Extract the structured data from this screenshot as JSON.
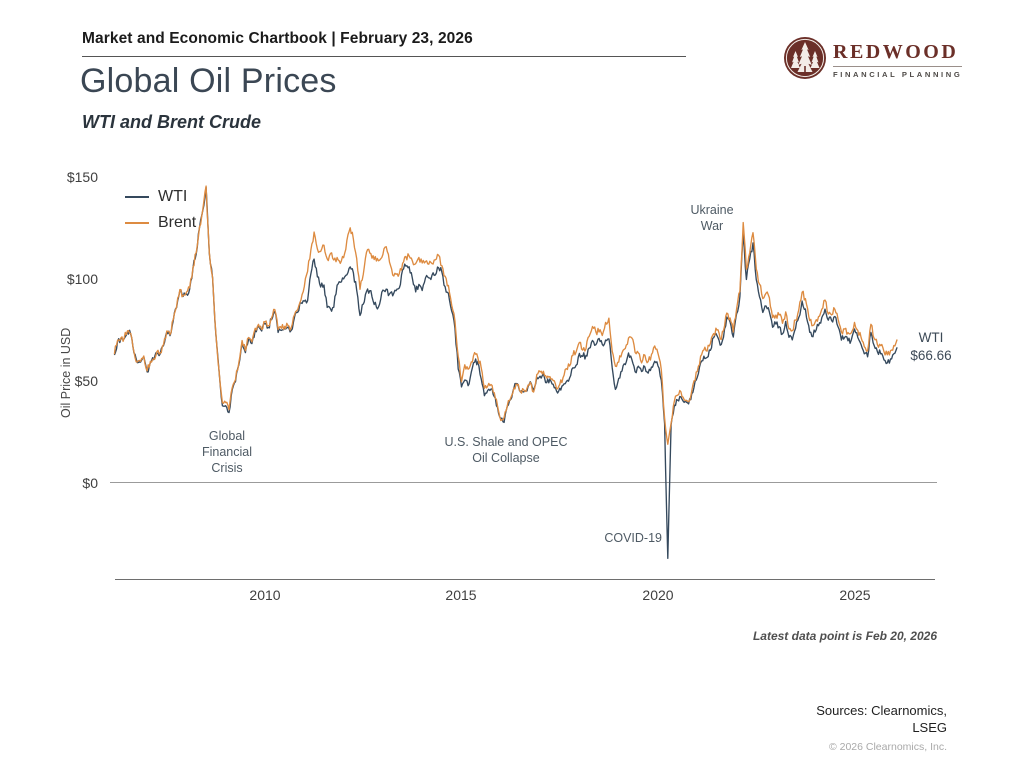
{
  "header": {
    "title": "Market and Economic Chartbook | February 23, 2026"
  },
  "logo": {
    "name": "REDWOOD",
    "tagline": "FINANCIAL PLANNING",
    "brand_color": "#6b2f28"
  },
  "page": {
    "title": "Global Oil Prices",
    "subtitle": "WTI and Brent Crude"
  },
  "chart_data": {
    "type": "line",
    "title": "Global Oil Prices",
    "subtitle": "WTI and Brent Crude",
    "ylabel": "Oil Price in USD",
    "y_ticks": [
      "$150",
      "$100",
      "$50",
      "$0"
    ],
    "y_tick_values": [
      150,
      100,
      50,
      0
    ],
    "x_ticks": [
      "2010",
      "2015",
      "2020",
      "2025"
    ],
    "ylim": [
      -45,
      155
    ],
    "x_range": [
      2006.17,
      2026.4
    ],
    "grid": "zero-line-only",
    "legend_position": "top-left",
    "x_start_year": 2006.1667,
    "x_interval_years": 0.0833333,
    "visual_noise_amp": 1.6,
    "series": [
      {
        "name": "WTI",
        "color": "#35495d",
        "values": [
          62.9,
          69.7,
          70.9,
          70.9,
          74.4,
          73.1,
          63.9,
          59.1,
          59.4,
          62.0,
          54.6,
          59.3,
          60.6,
          64.0,
          63.5,
          67.5,
          74.2,
          72.4,
          79.9,
          86.2,
          94.6,
          91.7,
          93.0,
          95.4,
          105.6,
          112.6,
          125.4,
          133.9,
          145.3,
          113.0,
          100.6,
          72.8,
          54.0,
          38.0,
          38.0,
          34.6,
          46.0,
          49.8,
          58.0,
          69.2,
          64.1,
          70.5,
          68.5,
          75.2,
          77.0,
          74.7,
          78.2,
          76.4,
          80.3,
          84.3,
          74.0,
          75.0,
          76.0,
          76.6,
          75.0,
          81.5,
          84.0,
          88.5,
          89.4,
          89.6,
          102.9,
          110.0,
          101.3,
          96.3,
          97.3,
          86.3,
          85.6,
          86.4,
          97.2,
          98.6,
          100.3,
          102.3,
          106.2,
          103.3,
          94.7,
          82.3,
          87.9,
          94.1,
          94.5,
          89.5,
          86.5,
          87.9,
          94.8,
          95.3,
          92.9,
          92.0,
          94.5,
          95.8,
          104.7,
          106.6,
          106.3,
          100.5,
          93.9,
          97.6,
          94.6,
          100.8,
          100.8,
          102.1,
          102.2,
          105.8,
          103.6,
          96.5,
          93.2,
          84.4,
          75.8,
          56.0,
          47.2,
          50.6,
          47.8,
          54.5,
          59.3,
          59.8,
          51.2,
          42.9,
          45.5,
          46.2,
          42.4,
          37.2,
          31.7,
          29.8,
          37.8,
          41.0,
          46.7,
          48.8,
          44.7,
          44.7,
          45.2,
          49.8,
          45.7,
          52.0,
          52.5,
          53.5,
          49.3,
          51.1,
          48.5,
          45.2,
          46.6,
          48.0,
          49.8,
          51.6,
          56.6,
          57.9,
          63.7,
          62.2,
          62.7,
          66.3,
          70.0,
          67.9,
          71.0,
          68.1,
          70.2,
          70.8,
          56.7,
          46.0,
          51.4,
          55.0,
          58.2,
          63.9,
          60.8,
          54.7,
          57.4,
          54.8,
          57.0,
          54.0,
          57.0,
          59.8,
          57.5,
          50.5,
          29.2,
          -37.0,
          28.6,
          38.3,
          40.7,
          42.3,
          39.6,
          39.4,
          41.0,
          47.0,
          52.0,
          59.0,
          62.3,
          61.7,
          65.2,
          71.4,
          72.4,
          67.7,
          71.6,
          81.5,
          79.1,
          71.7,
          83.2,
          91.6,
          123.0,
          100.0,
          110.0,
          118.0,
          99.8,
          91.5,
          83.8,
          87.0,
          84.0,
          76.5,
          78.1,
          76.8,
          73.3,
          79.4,
          71.6,
          70.3,
          76.0,
          81.4,
          89.4,
          85.5,
          77.4,
          72.0,
          74.2,
          77.3,
          81.3,
          85.4,
          80.0,
          79.8,
          81.8,
          76.7,
          70.2,
          71.6,
          69.9,
          70.1,
          75.7,
          71.5,
          68.0,
          63.5,
          62.0,
          74.0,
          67.5,
          64.5,
          63.5,
          60.5,
          59.0,
          61.0,
          63.5,
          66.66
        ]
      },
      {
        "name": "Brent",
        "color": "#dd8b41",
        "values": [
          63.3,
          70.1,
          71.3,
          71.3,
          74.8,
          73.5,
          64.3,
          59.5,
          59.8,
          62.4,
          55.1,
          59.8,
          61.1,
          64.5,
          64.0,
          68.0,
          74.7,
          72.9,
          80.4,
          86.7,
          95.1,
          92.2,
          93.7,
          95.9,
          106.1,
          113.1,
          125.9,
          134.4,
          145.9,
          113.5,
          101.1,
          73.3,
          54.5,
          39.5,
          39.5,
          36.0,
          47.0,
          50.8,
          59.0,
          70.0,
          65.0,
          71.5,
          69.4,
          76.0,
          78.0,
          75.5,
          79.2,
          77.3,
          81.2,
          85.2,
          75.5,
          76.0,
          77.0,
          77.5,
          76.3,
          82.7,
          85.3,
          90.0,
          96.5,
          104.0,
          114.6,
          123.3,
          115.0,
          113.8,
          116.8,
          110.1,
          112.8,
          109.6,
          110.8,
          107.9,
          110.7,
          119.3,
          125.4,
          119.8,
          110.3,
          95.2,
          102.6,
          113.4,
          113.0,
          111.7,
          109.1,
          109.5,
          112.3,
          116.1,
          108.5,
          102.2,
          102.6,
          102.9,
          107.9,
          111.3,
          111.6,
          109.1,
          107.8,
          110.8,
          108.1,
          108.8,
          107.5,
          107.8,
          109.7,
          111.9,
          106.8,
          101.6,
          97.1,
          87.4,
          79.4,
          62.3,
          49.8,
          58.1,
          55.9,
          59.5,
          64.1,
          61.5,
          56.6,
          46.5,
          47.6,
          48.4,
          44.3,
          38.0,
          30.7,
          32.2,
          38.2,
          41.6,
          46.7,
          48.3,
          44.9,
          45.8,
          46.6,
          49.5,
          44.7,
          53.3,
          54.6,
          54.9,
          51.6,
          52.3,
          50.3,
          46.4,
          48.5,
          51.7,
          56.2,
          57.5,
          62.7,
          64.4,
          69.1,
          65.3,
          66.0,
          72.1,
          76.9,
          74.4,
          74.2,
          72.5,
          78.9,
          81.0,
          64.7,
          57.4,
          59.4,
          64.0,
          66.1,
          71.2,
          71.3,
          64.2,
          63.9,
          59.0,
          62.8,
          59.7,
          63.2,
          67.3,
          63.7,
          55.7,
          32.0,
          19.0,
          29.4,
          40.3,
          43.2,
          44.8,
          40.9,
          40.2,
          42.7,
          50.2,
          54.8,
          62.3,
          65.4,
          64.8,
          68.5,
          73.4,
          75.2,
          70.8,
          74.9,
          83.5,
          81.1,
          74.2,
          85.6,
          94.1,
          128.0,
          105.0,
          113.0,
          123.0,
          105.1,
          97.7,
          90.6,
          93.3,
          91.0,
          81.3,
          82.5,
          82.6,
          78.5,
          84.1,
          75.7,
          74.9,
          80.1,
          85.1,
          93.7,
          90.6,
          82.0,
          77.3,
          79.1,
          81.7,
          85.4,
          89.9,
          83.0,
          82.6,
          85.3,
          80.4,
          74.3,
          75.7,
          73.9,
          73.7,
          78.9,
          75.0,
          71.5,
          67.0,
          65.0,
          78.0,
          71.0,
          68.0,
          67.5,
          64.5,
          63.0,
          65.0,
          67.5,
          70.5
        ]
      }
    ],
    "annotations": {
      "gfc": [
        "Global",
        "Financial",
        "Crisis"
      ],
      "shale": [
        "U.S. Shale and OPEC",
        "Oil Collapse"
      ],
      "covid": "COVID-19",
      "ukraine": [
        "Ukraine",
        "War"
      ],
      "last_point": [
        "WTI",
        "$66.66"
      ]
    }
  },
  "footnote": "Latest data point is Feb 20, 2026",
  "sources": {
    "line1": "Sources: Clearnomics,",
    "line2": "LSEG",
    "copyright": "© 2026 Clearnomics, Inc."
  }
}
